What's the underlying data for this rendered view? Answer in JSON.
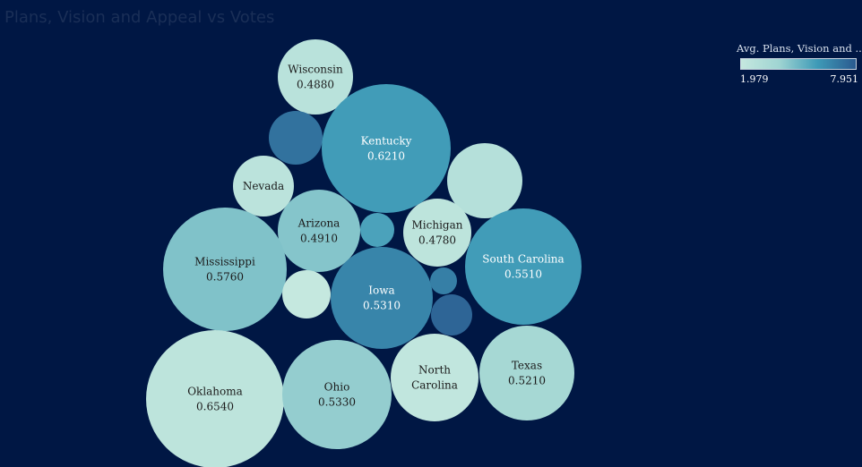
{
  "chart_data": {
    "type": "bubble",
    "title": "Plans, Vision and Appeal vs Votes",
    "legend": {
      "title": "Avg. Plans, Vision and ..",
      "min": 1.979,
      "max": 7.951,
      "min_label": "1.979",
      "max_label": "7.951",
      "colors": [
        "#c5e8df",
        "#9fd4d2",
        "#3e9ab7",
        "#2a5a8f"
      ],
      "placement": "top-right"
    },
    "bubbles": [
      {
        "state": "Wisconsin",
        "label_lines": [
          "Wisconsin"
        ],
        "value": "0.4880",
        "color": 2.6
      },
      {
        "state": "",
        "label_lines": [],
        "value": "",
        "color": 7.2
      },
      {
        "state": "Kentucky",
        "label_lines": [
          "Kentucky"
        ],
        "value": "0.6210",
        "color": 5.9
      },
      {
        "state": "",
        "label_lines": [],
        "value": "",
        "color": 2.8
      },
      {
        "state": "Nevada",
        "label_lines": [
          "Nevada"
        ],
        "value": "",
        "color": 2.5
      },
      {
        "state": "Arizona",
        "label_lines": [
          "Arizona"
        ],
        "value": "0.4910",
        "color": 4.5
      },
      {
        "state": "",
        "label_lines": [],
        "value": "",
        "color": 5.7
      },
      {
        "state": "Michigan",
        "label_lines": [
          "Michigan"
        ],
        "value": "0.4780",
        "color": 2.4
      },
      {
        "state": "Mississippi",
        "label_lines": [
          "Mississippi"
        ],
        "value": "0.5760",
        "color": 4.6
      },
      {
        "state": "South Carolina",
        "label_lines": [
          "South Carolina"
        ],
        "value": "0.5510",
        "color": 5.9
      },
      {
        "state": "",
        "label_lines": [],
        "value": "",
        "color": 2.0
      },
      {
        "state": "Iowa",
        "label_lines": [
          "Iowa"
        ],
        "value": "0.5310",
        "color": 6.6
      },
      {
        "state": "",
        "label_lines": [],
        "value": "",
        "color": 6.8
      },
      {
        "state": "",
        "label_lines": [],
        "value": "",
        "color": 7.6
      },
      {
        "state": "Oklahoma",
        "label_lines": [
          "Oklahoma"
        ],
        "value": "0.6540",
        "color": 2.4
      },
      {
        "state": "Ohio",
        "label_lines": [
          "Ohio"
        ],
        "value": "0.5330",
        "color": 4.2
      },
      {
        "state": "North Carolina",
        "label_lines": [
          "North",
          "Carolina"
        ],
        "value": "",
        "color": 2.2
      },
      {
        "state": "Texas",
        "label_lines": [
          "Texas"
        ],
        "value": "0.5210",
        "color": 3.6
      }
    ]
  }
}
